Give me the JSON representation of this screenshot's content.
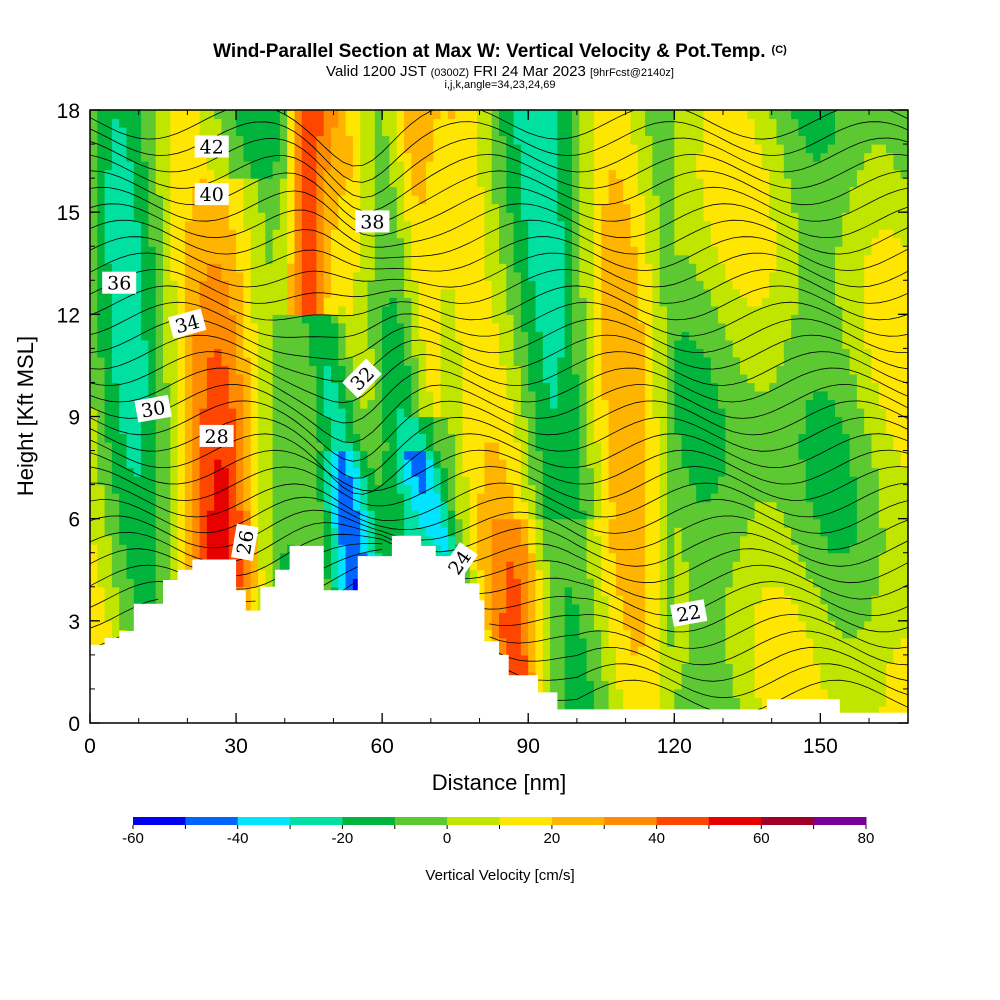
{
  "chart_data": {
    "type": "heatmap",
    "title": "Wind-Parallel Section at Max W: Vertical Velocity & Pot.Temp.",
    "title_mark": "(C)",
    "subtitle": {
      "prefix": "Valid 1200 JST",
      "utc": "(0300Z)",
      "date": "FRI 24 Mar 2023",
      "forecast": "[9hrFcst@2140z]"
    },
    "index_line": "i,j,k,angle=34,23,24,69",
    "xlabel": "Distance [nm]",
    "ylabel": "Height [Kft MSL]",
    "xlim": [
      0,
      168
    ],
    "ylim": [
      0,
      18
    ],
    "xticks": [
      0,
      30,
      60,
      90,
      120,
      150
    ],
    "yticks": [
      0,
      3,
      6,
      9,
      12,
      15,
      18
    ],
    "colorbar": {
      "label": "Vertical Velocity [cm/s]",
      "ticks": [
        -60,
        -40,
        -20,
        0,
        20,
        40,
        60,
        80
      ],
      "levels": [
        -60,
        -50,
        -40,
        -30,
        -20,
        -10,
        0,
        10,
        20,
        30,
        40,
        50,
        60,
        70,
        80
      ],
      "colors": [
        "#0000ee",
        "#0064ff",
        "#00e5ff",
        "#00e0a0",
        "#00b43c",
        "#5cc832",
        "#c0e600",
        "#ffe600",
        "#ffb400",
        "#ff8c00",
        "#ff4600",
        "#e60000",
        "#a00028",
        "#780096"
      ]
    },
    "terrain": [
      [
        0,
        2.3
      ],
      [
        3,
        2.3
      ],
      [
        3,
        2.5
      ],
      [
        6,
        2.5
      ],
      [
        6,
        2.7
      ],
      [
        9,
        2.7
      ],
      [
        9,
        3.5
      ],
      [
        15,
        3.5
      ],
      [
        15,
        4.2
      ],
      [
        18,
        4.2
      ],
      [
        18,
        4.5
      ],
      [
        21,
        4.5
      ],
      [
        21,
        4.8
      ],
      [
        30,
        4.8
      ],
      [
        30,
        3.9
      ],
      [
        32,
        3.9
      ],
      [
        32,
        3.3
      ],
      [
        35,
        3.3
      ],
      [
        35,
        4.0
      ],
      [
        38,
        4.0
      ],
      [
        38,
        4.5
      ],
      [
        41,
        4.5
      ],
      [
        41,
        5.2
      ],
      [
        48,
        5.2
      ],
      [
        48,
        3.9
      ],
      [
        55,
        3.9
      ],
      [
        55,
        4.9
      ],
      [
        62,
        4.9
      ],
      [
        62,
        5.5
      ],
      [
        68,
        5.5
      ],
      [
        68,
        5.2
      ],
      [
        71,
        5.2
      ],
      [
        71,
        4.9
      ],
      [
        74,
        4.9
      ],
      [
        74,
        4.5
      ],
      [
        77,
        4.5
      ],
      [
        77,
        4.1
      ],
      [
        80,
        4.1
      ],
      [
        80,
        3.6
      ],
      [
        81,
        3.6
      ],
      [
        81,
        2.4
      ],
      [
        84,
        2.4
      ],
      [
        84,
        2.0
      ],
      [
        86,
        2.0
      ],
      [
        86,
        1.4
      ],
      [
        92,
        1.4
      ],
      [
        92,
        0.9
      ],
      [
        96,
        0.9
      ],
      [
        96,
        0.4
      ],
      [
        139,
        0.4
      ],
      [
        139,
        0.7
      ],
      [
        154,
        0.7
      ],
      [
        154,
        0.3
      ],
      [
        168,
        0.3
      ]
    ],
    "theta_contours": [
      {
        "value": 22,
        "label_at": [
          123,
          3.2
        ],
        "rot": -10
      },
      {
        "value": 24,
        "label_at": [
          76,
          4.7
        ],
        "rot": -55
      },
      {
        "value": 26,
        "label_at": [
          32,
          5.3
        ],
        "rot": -80
      },
      {
        "value": 28,
        "label_at": [
          26,
          8.4
        ],
        "rot": 0
      },
      {
        "value": 30,
        "label_at": [
          13,
          9.2
        ],
        "rot": -10
      },
      {
        "value": 32,
        "label_at": [
          56,
          10.1
        ],
        "rot": -45
      },
      {
        "value": 34,
        "label_at": [
          20,
          11.7
        ],
        "rot": -15
      },
      {
        "value": 36,
        "label_at": [
          6,
          12.9
        ],
        "rot": 0
      },
      {
        "value": 38,
        "label_at": [
          58,
          14.7
        ],
        "rot": 0
      },
      {
        "value": 40,
        "label_at": [
          25,
          15.5
        ],
        "rot": 0
      },
      {
        "value": 42,
        "label_at": [
          25,
          16.9
        ],
        "rot": 0
      }
    ]
  }
}
